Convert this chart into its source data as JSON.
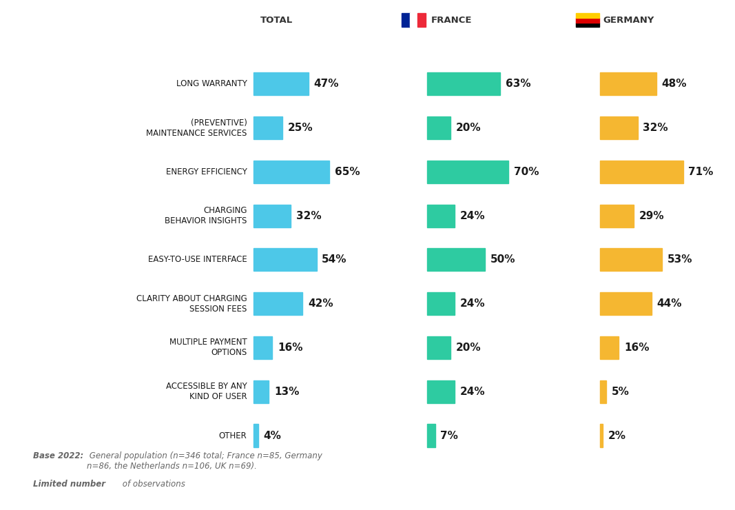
{
  "categories": [
    "LONG WARRANTY",
    "(PREVENTIVE)\nMAINTENANCE SERVICES",
    "ENERGY EFFICIENCY",
    "CHARGING\nBEHAVIOR INSIGHTS",
    "EASY-TO-USE INTERFACE",
    "CLARITY ABOUT CHARGING\nSESSION FEES",
    "MULTIPLE PAYMENT\nOPTIONS",
    "ACCESSIBLE BY ANY\nKIND OF USER",
    "OTHER"
  ],
  "total": [
    47,
    25,
    65,
    32,
    54,
    42,
    16,
    13,
    4
  ],
  "france": [
    63,
    20,
    70,
    24,
    50,
    24,
    20,
    24,
    7
  ],
  "germany": [
    48,
    32,
    71,
    29,
    53,
    44,
    16,
    5,
    2
  ],
  "color_total": "#4DC8E8",
  "color_france": "#2ECBA1",
  "color_germany": "#F5B731",
  "bg_color": "#FFFFFF",
  "label_color": "#1A1A1A",
  "col_header_color": "#333333",
  "col_headers": [
    "TOTAL",
    "FRANCE",
    "GERMANY"
  ],
  "bar_height": 0.52,
  "max_bar_width": 0.175,
  "note_bold": "Base 2022:",
  "note_regular": " General population (n=346 total; France n=85, Germany\nn=86, the Netherlands n=106, UK n=69).",
  "note2_bold": "Limited number",
  "note2_regular": " of observations"
}
